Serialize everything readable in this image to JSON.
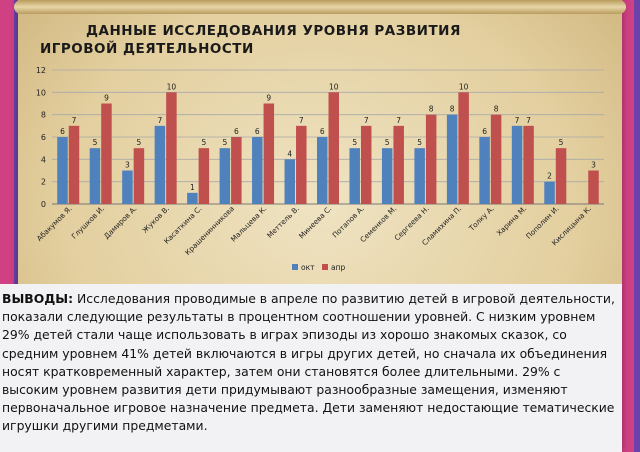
{
  "page": {
    "title": "ДАННЫЕ  ИССЛЕДОВАНИЯ  УРОВНЯ  РАЗВИТИЯ\nИГРОВОЙ  ДЕЯТЕЛЬНОСТИ",
    "conclusions_label": "ВЫВОДЫ:",
    "conclusions_text": "  Исследования проводимые в апреле по развитию детей в игровой деятельности, показали следующие результаты в процентном соотношении уровней. С низким уровнем 29% детей стали чаще использовать в играх эпизоды из хорошо знакомых сказок,  со средним уровнем 41% детей включаются в игры других детей, но сначала их объединения носят кратковременный характер, затем они становятся более длительными. 29% с высоким уровнем развития дети придумывают разнообразные замещения, изменяют первоначальное игровое назначение предмета. Дети заменяют недостающие тематические игрушки другими предметами."
  },
  "chart_data": {
    "type": "bar",
    "categories": [
      "Абакумов Я.",
      "Глушков И.",
      "Дамиров А.",
      "Жуков В.",
      "Касаткина С.",
      "Крашенинникова",
      "Мальцева К.",
      "Меттель В.",
      "Минеева С.",
      "Потапов А.",
      "Семенков М.",
      "Сергеева Н.",
      "Сламихина П.",
      "Толку А.",
      "Харина М.",
      "Пополин И.",
      "Кислицына К."
    ],
    "series": [
      {
        "name": "окт",
        "color": "#4f81bd",
        "values": [
          6,
          5,
          3,
          7,
          1,
          5,
          6,
          4,
          6,
          5,
          5,
          5,
          8,
          6,
          7,
          2,
          0
        ]
      },
      {
        "name": "апр",
        "color": "#c0504d",
        "values": [
          7,
          9,
          5,
          10,
          5,
          6,
          9,
          7,
          10,
          7,
          7,
          8,
          10,
          8,
          7,
          5,
          3
        ]
      }
    ],
    "ylim": [
      0,
      12
    ],
    "yticks": [
      0,
      2,
      4,
      6,
      8,
      10,
      12
    ],
    "grid": true,
    "legend_position": "bottom",
    "data_labels": true
  }
}
